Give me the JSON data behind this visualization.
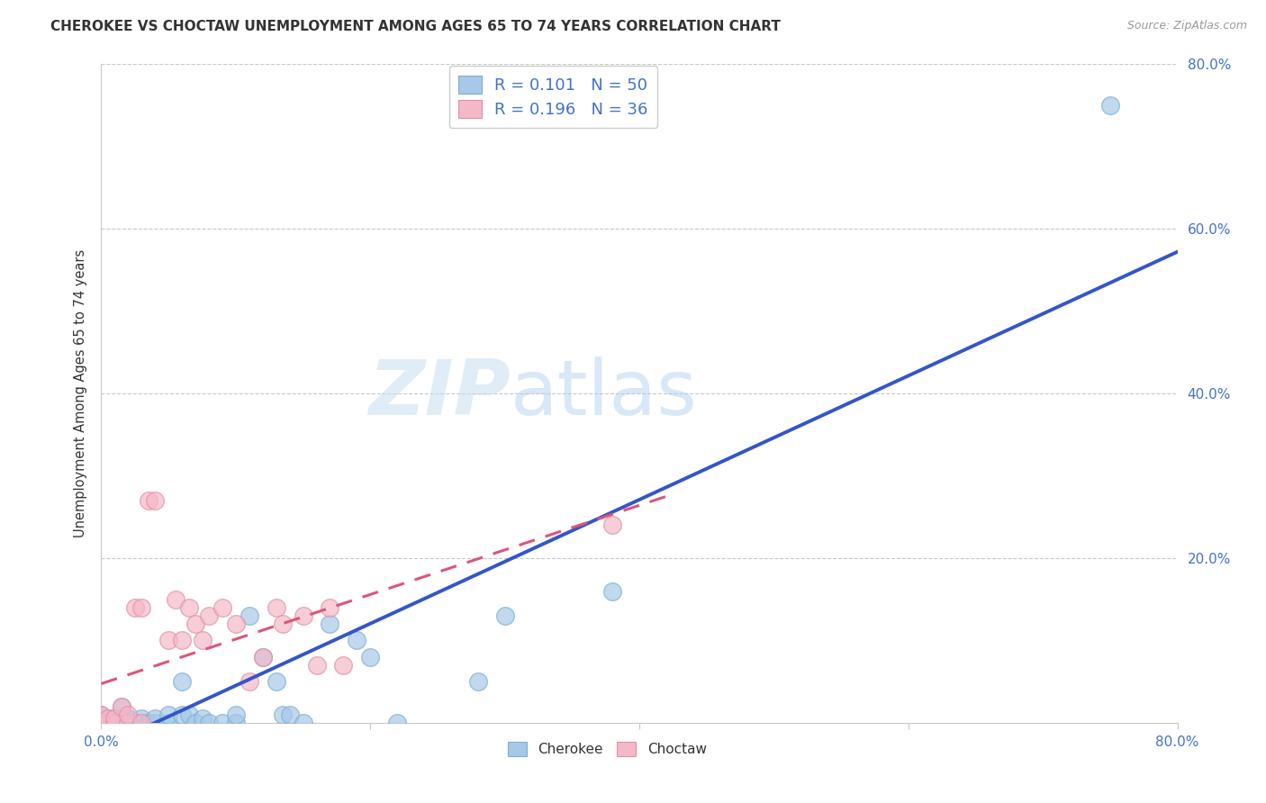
{
  "title": "CHEROKEE VS CHOCTAW UNEMPLOYMENT AMONG AGES 65 TO 74 YEARS CORRELATION CHART",
  "source": "Source: ZipAtlas.com",
  "ylabel": "Unemployment Among Ages 65 to 74 years",
  "xlim": [
    0,
    0.8
  ],
  "ylim": [
    0,
    0.8
  ],
  "xticks": [
    0.0,
    0.2,
    0.4,
    0.6,
    0.8
  ],
  "yticks": [
    0.0,
    0.2,
    0.4,
    0.6,
    0.8
  ],
  "cherokee_color": "#a8c8e8",
  "cherokee_edge_color": "#7bafd4",
  "choctaw_color": "#f4b8c8",
  "choctaw_edge_color": "#e090a8",
  "cherokee_line_color": "#3355cc",
  "choctaw_line_color": "#dd5577",
  "legend_R_cherokee": "R = 0.101",
  "legend_N_cherokee": "N = 50",
  "legend_R_choctaw": "R = 0.196",
  "legend_N_choctaw": "N = 36",
  "watermark_zip": "ZIP",
  "watermark_atlas": "atlas",
  "background_color": "#ffffff",
  "grid_color": "#c8c8c8",
  "tick_color": "#4472c4",
  "cherokee_x": [
    0.0,
    0.0,
    0.0,
    0.0,
    0.0,
    0.0,
    0.005,
    0.005,
    0.005,
    0.01,
    0.01,
    0.01,
    0.01,
    0.015,
    0.015,
    0.02,
    0.02,
    0.02,
    0.02,
    0.025,
    0.03,
    0.03,
    0.035,
    0.04,
    0.04,
    0.05,
    0.05,
    0.06,
    0.06,
    0.065,
    0.07,
    0.075,
    0.08,
    0.09,
    0.1,
    0.1,
    0.11,
    0.12,
    0.13,
    0.135,
    0.14,
    0.15,
    0.17,
    0.19,
    0.2,
    0.22,
    0.28,
    0.3,
    0.38,
    0.75
  ],
  "cherokee_y": [
    0.0,
    0.0,
    0.0,
    0.0,
    0.005,
    0.01,
    0.0,
    0.0,
    0.005,
    0.0,
    0.0,
    0.005,
    0.005,
    0.0,
    0.02,
    0.0,
    0.0,
    0.005,
    0.005,
    0.0,
    0.0,
    0.005,
    0.0,
    0.0,
    0.005,
    0.0,
    0.01,
    0.01,
    0.05,
    0.01,
    0.0,
    0.005,
    0.0,
    0.0,
    0.0,
    0.01,
    0.13,
    0.08,
    0.05,
    0.01,
    0.01,
    0.0,
    0.12,
    0.1,
    0.08,
    0.0,
    0.05,
    0.13,
    0.16,
    0.75
  ],
  "choctaw_x": [
    0.0,
    0.0,
    0.0,
    0.0,
    0.0,
    0.0,
    0.005,
    0.005,
    0.01,
    0.01,
    0.015,
    0.02,
    0.02,
    0.025,
    0.03,
    0.03,
    0.035,
    0.04,
    0.05,
    0.055,
    0.06,
    0.065,
    0.07,
    0.075,
    0.08,
    0.09,
    0.1,
    0.11,
    0.12,
    0.13,
    0.135,
    0.15,
    0.16,
    0.17,
    0.18,
    0.38
  ],
  "choctaw_y": [
    0.0,
    0.0,
    0.0,
    0.005,
    0.005,
    0.01,
    0.0,
    0.005,
    0.0,
    0.005,
    0.02,
    0.0,
    0.01,
    0.14,
    0.0,
    0.14,
    0.27,
    0.27,
    0.1,
    0.15,
    0.1,
    0.14,
    0.12,
    0.1,
    0.13,
    0.14,
    0.12,
    0.05,
    0.08,
    0.14,
    0.12,
    0.13,
    0.07,
    0.14,
    0.07,
    0.24
  ]
}
